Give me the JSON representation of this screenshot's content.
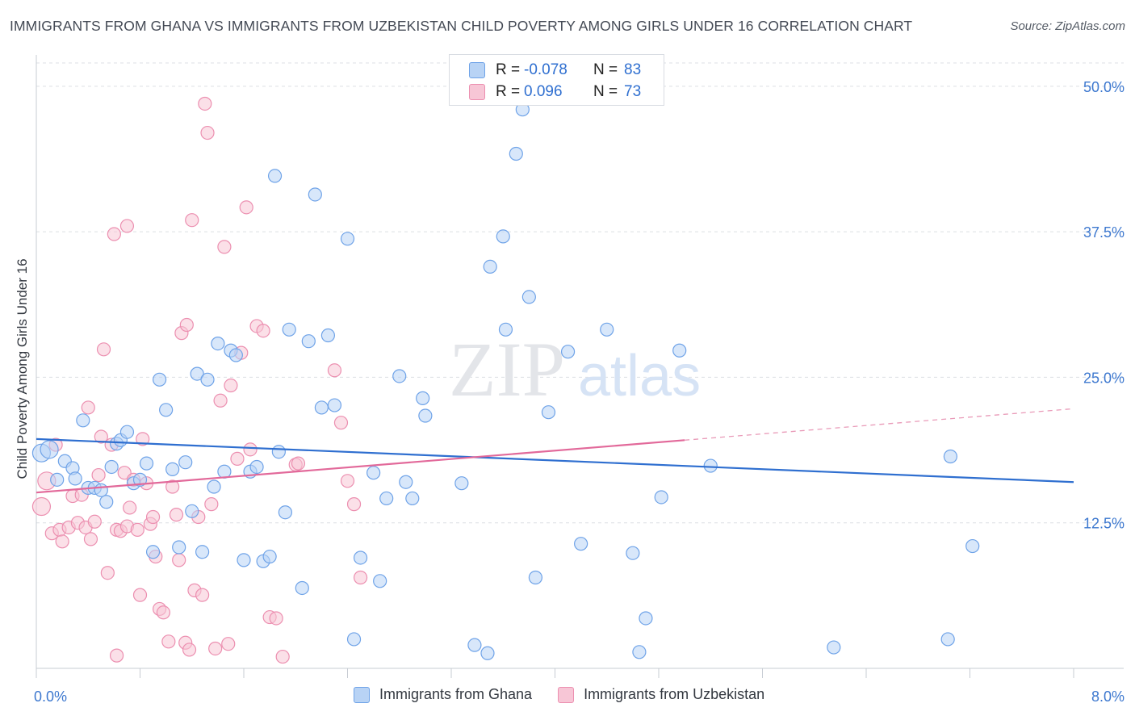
{
  "title": "IMMIGRANTS FROM GHANA VS IMMIGRANTS FROM UZBEKISTAN CHILD POVERTY AMONG GIRLS UNDER 16 CORRELATION CHART",
  "source": "Source: ZipAtlas.com",
  "watermark": {
    "zip": "ZIP",
    "atlas": "atlas"
  },
  "stats": [
    {
      "series": "Immigrants from Ghana",
      "r_label": "R =",
      "r_value": "-0.078",
      "n_label": "N =",
      "n_value": "83"
    },
    {
      "series": "Immigrants from Uzbekistan",
      "r_label": "R =",
      "r_value": "0.096",
      "n_label": "N =",
      "n_value": "73"
    }
  ],
  "chart_data": {
    "type": "scatter",
    "title": "IMMIGRANTS FROM GHANA VS IMMIGRANTS FROM UZBEKISTAN CHILD POVERTY AMONG GIRLS UNDER 16 CORRELATION CHART",
    "xlabel": "",
    "ylabel": "Child Poverty Among Girls Under 16",
    "xlim": [
      0,
      8
    ],
    "ylim": [
      0,
      52
    ],
    "x_tick_labels": [
      "0.0%",
      "8.0%"
    ],
    "y_ticks": [
      12.5,
      25.0,
      37.5,
      50.0
    ],
    "y_tick_labels": [
      "12.5%",
      "25.0%",
      "37.5%",
      "50.0%"
    ],
    "grid": true,
    "legend_position": "bottom-center",
    "series": [
      {
        "name": "Immigrants from Ghana",
        "color": "#6fa3e8",
        "fill": "#b8d3f5",
        "trend": {
          "x": [
            0,
            8
          ],
          "y": [
            19.7,
            16.0
          ]
        },
        "points": [
          [
            0.04,
            18.5
          ],
          [
            0.1,
            18.8
          ],
          [
            0.16,
            16.2
          ],
          [
            0.22,
            17.8
          ],
          [
            0.28,
            17.2
          ],
          [
            0.3,
            16.3
          ],
          [
            0.36,
            21.3
          ],
          [
            0.4,
            15.5
          ],
          [
            0.45,
            15.5
          ],
          [
            0.5,
            15.3
          ],
          [
            0.54,
            14.3
          ],
          [
            0.58,
            17.3
          ],
          [
            0.62,
            19.3
          ],
          [
            0.65,
            19.6
          ],
          [
            0.7,
            20.3
          ],
          [
            0.75,
            15.9
          ],
          [
            0.8,
            16.2
          ],
          [
            0.85,
            17.6
          ],
          [
            0.9,
            10.0
          ],
          [
            0.95,
            24.8
          ],
          [
            1.0,
            22.2
          ],
          [
            1.05,
            17.1
          ],
          [
            1.1,
            10.4
          ],
          [
            1.15,
            17.7
          ],
          [
            1.2,
            13.5
          ],
          [
            1.24,
            25.3
          ],
          [
            1.28,
            10.0
          ],
          [
            1.32,
            24.8
          ],
          [
            1.37,
            15.6
          ],
          [
            1.4,
            27.9
          ],
          [
            1.45,
            16.9
          ],
          [
            1.5,
            27.3
          ],
          [
            1.54,
            26.9
          ],
          [
            1.6,
            9.3
          ],
          [
            1.65,
            16.9
          ],
          [
            1.7,
            17.3
          ],
          [
            1.75,
            9.2
          ],
          [
            1.8,
            9.6
          ],
          [
            1.84,
            42.3
          ],
          [
            1.87,
            18.6
          ],
          [
            1.92,
            13.4
          ],
          [
            1.95,
            29.1
          ],
          [
            2.05,
            6.9
          ],
          [
            2.1,
            28.1
          ],
          [
            2.15,
            40.7
          ],
          [
            2.2,
            22.4
          ],
          [
            2.25,
            28.6
          ],
          [
            2.3,
            22.6
          ],
          [
            2.4,
            36.9
          ],
          [
            2.45,
            2.5
          ],
          [
            2.5,
            9.5
          ],
          [
            2.6,
            16.8
          ],
          [
            2.65,
            7.5
          ],
          [
            2.7,
            14.6
          ],
          [
            2.8,
            25.1
          ],
          [
            2.85,
            16.0
          ],
          [
            2.9,
            14.6
          ],
          [
            2.98,
            23.2
          ],
          [
            3.0,
            21.7
          ],
          [
            3.28,
            15.9
          ],
          [
            3.38,
            2.0
          ],
          [
            3.48,
            1.3
          ],
          [
            3.5,
            34.5
          ],
          [
            3.6,
            37.1
          ],
          [
            3.62,
            29.1
          ],
          [
            3.7,
            44.2
          ],
          [
            3.75,
            48.0
          ],
          [
            3.8,
            31.9
          ],
          [
            3.85,
            7.8
          ],
          [
            3.95,
            22.0
          ],
          [
            4.1,
            27.2
          ],
          [
            4.2,
            10.7
          ],
          [
            4.4,
            29.1
          ],
          [
            4.6,
            9.9
          ],
          [
            4.65,
            1.4
          ],
          [
            4.7,
            4.3
          ],
          [
            4.82,
            14.7
          ],
          [
            4.96,
            27.3
          ],
          [
            5.2,
            17.4
          ],
          [
            6.15,
            1.8
          ],
          [
            7.03,
            2.5
          ],
          [
            7.05,
            18.2
          ],
          [
            7.22,
            10.5
          ]
        ]
      },
      {
        "name": "Immigrants from Uzbekistan",
        "color": "#ec8fb0",
        "fill": "#f7c6d6",
        "trend": {
          "x": [
            0,
            5.0
          ],
          "y": [
            15.1,
            19.6
          ]
        },
        "trend_dashed": {
          "x": [
            5.0,
            8
          ],
          "y": [
            19.6,
            22.3
          ]
        },
        "points": [
          [
            0.04,
            13.9
          ],
          [
            0.08,
            16.1
          ],
          [
            0.12,
            11.6
          ],
          [
            0.15,
            19.2
          ],
          [
            0.18,
            11.9
          ],
          [
            0.2,
            10.9
          ],
          [
            0.25,
            12.1
          ],
          [
            0.28,
            14.8
          ],
          [
            0.32,
            12.5
          ],
          [
            0.35,
            14.9
          ],
          [
            0.38,
            12.1
          ],
          [
            0.4,
            22.4
          ],
          [
            0.42,
            11.1
          ],
          [
            0.45,
            12.6
          ],
          [
            0.48,
            16.6
          ],
          [
            0.5,
            19.9
          ],
          [
            0.52,
            27.4
          ],
          [
            0.55,
            8.2
          ],
          [
            0.58,
            19.2
          ],
          [
            0.6,
            37.3
          ],
          [
            0.62,
            11.9
          ],
          [
            0.65,
            11.8
          ],
          [
            0.68,
            16.8
          ],
          [
            0.7,
            12.2
          ],
          [
            0.72,
            13.8
          ],
          [
            0.75,
            16.2
          ],
          [
            0.78,
            11.9
          ],
          [
            0.8,
            6.3
          ],
          [
            0.82,
            19.7
          ],
          [
            0.85,
            15.9
          ],
          [
            0.88,
            12.4
          ],
          [
            0.9,
            13.0
          ],
          [
            0.92,
            9.6
          ],
          [
            0.95,
            5.1
          ],
          [
            0.98,
            4.8
          ],
          [
            1.02,
            2.3
          ],
          [
            1.05,
            15.6
          ],
          [
            1.08,
            13.2
          ],
          [
            1.1,
            9.3
          ],
          [
            1.12,
            28.8
          ],
          [
            1.15,
            2.2
          ],
          [
            1.18,
            1.6
          ],
          [
            1.2,
            38.5
          ],
          [
            1.22,
            6.7
          ],
          [
            1.25,
            13.0
          ],
          [
            1.28,
            6.3
          ],
          [
            1.3,
            48.5
          ],
          [
            1.32,
            46.0
          ],
          [
            1.35,
            14.1
          ],
          [
            1.38,
            1.7
          ],
          [
            1.42,
            23.0
          ],
          [
            1.45,
            36.2
          ],
          [
            1.48,
            2.1
          ],
          [
            1.5,
            24.3
          ],
          [
            1.55,
            18.0
          ],
          [
            1.58,
            27.1
          ],
          [
            1.62,
            39.6
          ],
          [
            1.65,
            18.8
          ],
          [
            1.7,
            29.4
          ],
          [
            1.75,
            29.0
          ],
          [
            1.8,
            4.4
          ],
          [
            1.85,
            4.3
          ],
          [
            1.9,
            1.0
          ],
          [
            2.0,
            17.5
          ],
          [
            2.02,
            17.6
          ],
          [
            2.3,
            25.6
          ],
          [
            2.35,
            21.1
          ],
          [
            2.4,
            16.1
          ],
          [
            2.45,
            14.1
          ],
          [
            2.5,
            7.8
          ],
          [
            0.62,
            1.1
          ],
          [
            0.7,
            38.0
          ],
          [
            1.16,
            29.5
          ]
        ]
      }
    ]
  }
}
